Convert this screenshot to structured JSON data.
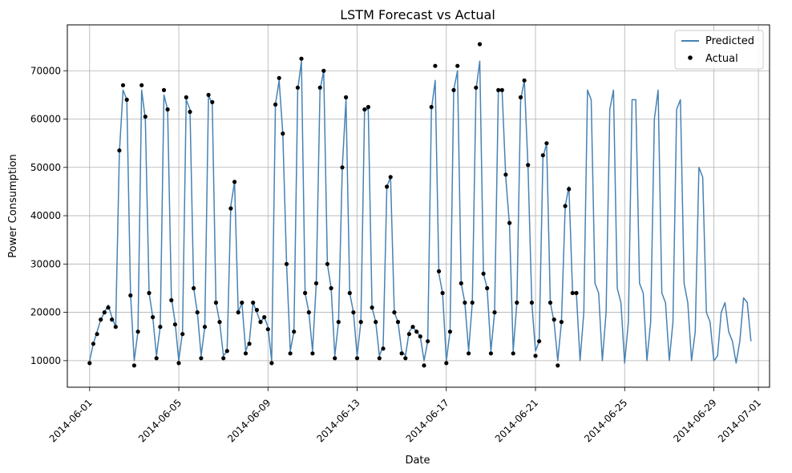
{
  "chart_data": {
    "type": "line",
    "title": "LSTM Forecast vs Actual",
    "xlabel": "Date",
    "ylabel": "Power Consumption",
    "xlim": [
      "2014-05-31T00:00",
      "2014-07-01T12:00"
    ],
    "ylim": [
      4500,
      79500
    ],
    "x_ticks": [
      "2014-06-01",
      "2014-06-05",
      "2014-06-09",
      "2014-06-13",
      "2014-06-17",
      "2014-06-21",
      "2014-06-25",
      "2014-06-29",
      "2014-07-01"
    ],
    "y_ticks": [
      10000,
      20000,
      30000,
      40000,
      50000,
      60000,
      70000
    ],
    "grid": true,
    "legend_position": "top-right",
    "colors": {
      "predicted": "#4682b4",
      "actual": "#000000"
    },
    "series": [
      {
        "name": "Predicted",
        "style": "line",
        "x": [
          "2014-06-01T00:00",
          "2014-06-01T04:00",
          "2014-06-01T08:00",
          "2014-06-01T12:00",
          "2014-06-01T16:00",
          "2014-06-01T20:00",
          "2014-06-02T00:00",
          "2014-06-02T04:00",
          "2014-06-02T08:00",
          "2014-06-02T12:00",
          "2014-06-02T16:00",
          "2014-06-02T20:00",
          "2014-06-03T00:00",
          "2014-06-03T04:00",
          "2014-06-03T08:00",
          "2014-06-03T12:00",
          "2014-06-03T16:00",
          "2014-06-03T20:00",
          "2014-06-04T00:00",
          "2014-06-04T04:00",
          "2014-06-04T08:00",
          "2014-06-04T12:00",
          "2014-06-04T16:00",
          "2014-06-04T20:00",
          "2014-06-05T00:00",
          "2014-06-05T04:00",
          "2014-06-05T08:00",
          "2014-06-05T12:00",
          "2014-06-05T16:00",
          "2014-06-05T20:00",
          "2014-06-06T00:00",
          "2014-06-06T04:00",
          "2014-06-06T08:00",
          "2014-06-06T12:00",
          "2014-06-06T16:00",
          "2014-06-06T20:00",
          "2014-06-07T00:00",
          "2014-06-07T04:00",
          "2014-06-07T08:00",
          "2014-06-07T12:00",
          "2014-06-07T16:00",
          "2014-06-07T20:00",
          "2014-06-08T00:00",
          "2014-06-08T04:00",
          "2014-06-08T08:00",
          "2014-06-08T12:00",
          "2014-06-08T16:00",
          "2014-06-08T20:00",
          "2014-06-09T00:00",
          "2014-06-09T04:00",
          "2014-06-09T08:00",
          "2014-06-09T12:00",
          "2014-06-09T16:00",
          "2014-06-09T20:00",
          "2014-06-10T00:00",
          "2014-06-10T04:00",
          "2014-06-10T08:00",
          "2014-06-10T12:00",
          "2014-06-10T16:00",
          "2014-06-10T20:00",
          "2014-06-11T00:00",
          "2014-06-11T04:00",
          "2014-06-11T08:00",
          "2014-06-11T12:00",
          "2014-06-11T16:00",
          "2014-06-11T20:00",
          "2014-06-12T00:00",
          "2014-06-12T04:00",
          "2014-06-12T08:00",
          "2014-06-12T12:00",
          "2014-06-12T16:00",
          "2014-06-12T20:00",
          "2014-06-13T00:00",
          "2014-06-13T04:00",
          "2014-06-13T08:00",
          "2014-06-13T12:00",
          "2014-06-13T16:00",
          "2014-06-13T20:00",
          "2014-06-14T00:00",
          "2014-06-14T04:00",
          "2014-06-14T08:00",
          "2014-06-14T12:00",
          "2014-06-14T16:00",
          "2014-06-14T20:00",
          "2014-06-15T00:00",
          "2014-06-15T04:00",
          "2014-06-15T08:00",
          "2014-06-15T12:00",
          "2014-06-15T16:00",
          "2014-06-15T20:00",
          "2014-06-16T00:00",
          "2014-06-16T04:00",
          "2014-06-16T08:00",
          "2014-06-16T12:00",
          "2014-06-16T16:00",
          "2014-06-16T20:00",
          "2014-06-17T00:00",
          "2014-06-17T04:00",
          "2014-06-17T08:00",
          "2014-06-17T12:00",
          "2014-06-17T16:00",
          "2014-06-17T20:00",
          "2014-06-18T00:00",
          "2014-06-18T04:00",
          "2014-06-18T08:00",
          "2014-06-18T12:00",
          "2014-06-18T16:00",
          "2014-06-18T20:00",
          "2014-06-19T00:00",
          "2014-06-19T04:00",
          "2014-06-19T08:00",
          "2014-06-19T12:00",
          "2014-06-19T16:00",
          "2014-06-19T20:00",
          "2014-06-20T00:00",
          "2014-06-20T04:00",
          "2014-06-20T08:00",
          "2014-06-20T12:00",
          "2014-06-20T16:00",
          "2014-06-20T20:00",
          "2014-06-21T00:00",
          "2014-06-21T04:00",
          "2014-06-21T08:00",
          "2014-06-21T12:00",
          "2014-06-21T16:00",
          "2014-06-21T20:00",
          "2014-06-22T00:00",
          "2014-06-22T04:00",
          "2014-06-22T08:00",
          "2014-06-22T12:00",
          "2014-06-22T16:00",
          "2014-06-22T20:00",
          "2014-06-23T00:00",
          "2014-06-23T04:00",
          "2014-06-23T08:00",
          "2014-06-23T12:00",
          "2014-06-23T16:00",
          "2014-06-23T20:00",
          "2014-06-24T00:00",
          "2014-06-24T04:00",
          "2014-06-24T08:00",
          "2014-06-24T12:00",
          "2014-06-24T16:00",
          "2014-06-24T20:00",
          "2014-06-25T00:00",
          "2014-06-25T04:00",
          "2014-06-25T08:00",
          "2014-06-25T12:00",
          "2014-06-25T16:00",
          "2014-06-25T20:00",
          "2014-06-26T00:00",
          "2014-06-26T04:00",
          "2014-06-26T08:00",
          "2014-06-26T12:00",
          "2014-06-26T16:00",
          "2014-06-26T20:00",
          "2014-06-27T00:00",
          "2014-06-27T04:00",
          "2014-06-27T08:00",
          "2014-06-27T12:00",
          "2014-06-27T16:00",
          "2014-06-27T20:00",
          "2014-06-28T00:00",
          "2014-06-28T04:00",
          "2014-06-28T08:00",
          "2014-06-28T12:00",
          "2014-06-28T16:00",
          "2014-06-28T20:00",
          "2014-06-29T00:00",
          "2014-06-29T04:00",
          "2014-06-29T08:00",
          "2014-06-29T12:00",
          "2014-06-29T16:00",
          "2014-06-29T20:00",
          "2014-06-30T00:00",
          "2014-06-30T04:00",
          "2014-06-30T08:00",
          "2014-06-30T12:00",
          "2014-06-30T16:00"
        ],
        "y": [
          10000,
          13500,
          16000,
          18500,
          20000,
          21500,
          19000,
          17000,
          53000,
          66000,
          64000,
          24000,
          10000,
          16000,
          66000,
          60000,
          24000,
          19000,
          11000,
          17000,
          65000,
          62000,
          23000,
          18000,
          10000,
          16000,
          64000,
          62000,
          25000,
          20000,
          11000,
          17000,
          65000,
          63000,
          22000,
          18000,
          11000,
          12000,
          42000,
          47000,
          20000,
          22000,
          12000,
          14000,
          22000,
          20000,
          18000,
          19000,
          17000,
          10000,
          63000,
          68000,
          57000,
          30000,
          12000,
          16000,
          66000,
          72000,
          24000,
          20000,
          12000,
          26000,
          66000,
          70000,
          30000,
          25000,
          11000,
          18000,
          50000,
          64000,
          24000,
          20000,
          11000,
          18000,
          62000,
          62000,
          21000,
          18000,
          11000,
          13000,
          46000,
          48000,
          20000,
          18000,
          12000,
          11000,
          16000,
          17000,
          16000,
          15000,
          10000,
          14000,
          62000,
          68000,
          28000,
          24000,
          10000,
          16000,
          66000,
          70000,
          26000,
          22000,
          12000,
          22000,
          66000,
          72000,
          28000,
          25000,
          12000,
          20000,
          66000,
          66000,
          48000,
          38000,
          12000,
          22000,
          64000,
          68000,
          50000,
          22000,
          12000,
          14000,
          52000,
          55000,
          22000,
          18000,
          10000,
          18000,
          42000,
          46000,
          24000,
          24000,
          10000,
          20000,
          66000,
          64000,
          26000,
          24000,
          10000,
          20000,
          62000,
          66000,
          25000,
          22000,
          9500,
          18000,
          64000,
          64000,
          26000,
          24000,
          10000,
          18000,
          60000,
          66000,
          24000,
          22000,
          10000,
          18000,
          62000,
          64000,
          26000,
          22000,
          10000,
          16000,
          50000,
          48000,
          20000,
          18000,
          10000,
          11000,
          20000,
          22000,
          16000,
          14000,
          9500,
          14000,
          23000,
          22000,
          14000
        ]
      },
      {
        "name": "Actual",
        "style": "markers",
        "x": [
          "2014-06-01T00:00",
          "2014-06-01T04:00",
          "2014-06-01T08:00",
          "2014-06-01T12:00",
          "2014-06-01T16:00",
          "2014-06-01T20:00",
          "2014-06-02T00:00",
          "2014-06-02T04:00",
          "2014-06-02T08:00",
          "2014-06-02T12:00",
          "2014-06-02T16:00",
          "2014-06-02T20:00",
          "2014-06-03T00:00",
          "2014-06-03T04:00",
          "2014-06-03T08:00",
          "2014-06-03T12:00",
          "2014-06-03T16:00",
          "2014-06-03T20:00",
          "2014-06-04T00:00",
          "2014-06-04T04:00",
          "2014-06-04T08:00",
          "2014-06-04T12:00",
          "2014-06-04T16:00",
          "2014-06-04T20:00",
          "2014-06-05T00:00",
          "2014-06-05T04:00",
          "2014-06-05T08:00",
          "2014-06-05T12:00",
          "2014-06-05T16:00",
          "2014-06-05T20:00",
          "2014-06-06T00:00",
          "2014-06-06T04:00",
          "2014-06-06T08:00",
          "2014-06-06T12:00",
          "2014-06-06T16:00",
          "2014-06-06T20:00",
          "2014-06-07T00:00",
          "2014-06-07T04:00",
          "2014-06-07T08:00",
          "2014-06-07T12:00",
          "2014-06-07T16:00",
          "2014-06-07T20:00",
          "2014-06-08T00:00",
          "2014-06-08T04:00",
          "2014-06-08T08:00",
          "2014-06-08T12:00",
          "2014-06-08T16:00",
          "2014-06-08T20:00",
          "2014-06-09T00:00",
          "2014-06-09T04:00",
          "2014-06-09T08:00",
          "2014-06-09T12:00",
          "2014-06-09T16:00",
          "2014-06-09T20:00",
          "2014-06-10T00:00",
          "2014-06-10T04:00",
          "2014-06-10T08:00",
          "2014-06-10T12:00",
          "2014-06-10T16:00",
          "2014-06-10T20:00",
          "2014-06-11T00:00",
          "2014-06-11T04:00",
          "2014-06-11T08:00",
          "2014-06-11T12:00",
          "2014-06-11T16:00",
          "2014-06-11T20:00",
          "2014-06-12T00:00",
          "2014-06-12T04:00",
          "2014-06-12T08:00",
          "2014-06-12T12:00",
          "2014-06-12T16:00",
          "2014-06-12T20:00",
          "2014-06-13T00:00",
          "2014-06-13T04:00",
          "2014-06-13T08:00",
          "2014-06-13T12:00",
          "2014-06-13T16:00",
          "2014-06-13T20:00",
          "2014-06-14T00:00",
          "2014-06-14T04:00",
          "2014-06-14T08:00",
          "2014-06-14T12:00",
          "2014-06-14T16:00",
          "2014-06-14T20:00",
          "2014-06-15T00:00",
          "2014-06-15T04:00",
          "2014-06-15T08:00",
          "2014-06-15T12:00",
          "2014-06-15T16:00",
          "2014-06-15T20:00",
          "2014-06-16T00:00",
          "2014-06-16T04:00",
          "2014-06-16T08:00",
          "2014-06-16T12:00",
          "2014-06-16T16:00",
          "2014-06-16T20:00",
          "2014-06-17T00:00",
          "2014-06-17T04:00",
          "2014-06-17T08:00",
          "2014-06-17T12:00",
          "2014-06-17T16:00",
          "2014-06-17T20:00",
          "2014-06-18T00:00",
          "2014-06-18T04:00",
          "2014-06-18T08:00",
          "2014-06-18T12:00",
          "2014-06-18T16:00",
          "2014-06-18T20:00",
          "2014-06-19T00:00",
          "2014-06-19T04:00",
          "2014-06-19T08:00",
          "2014-06-19T12:00",
          "2014-06-19T16:00",
          "2014-06-19T20:00",
          "2014-06-20T00:00",
          "2014-06-20T04:00",
          "2014-06-20T08:00",
          "2014-06-20T12:00",
          "2014-06-20T16:00",
          "2014-06-20T20:00",
          "2014-06-21T00:00",
          "2014-06-21T04:00",
          "2014-06-21T08:00",
          "2014-06-21T12:00",
          "2014-06-21T16:00",
          "2014-06-21T20:00",
          "2014-06-22T00:00",
          "2014-06-22T04:00",
          "2014-06-22T08:00",
          "2014-06-22T12:00",
          "2014-06-22T16:00",
          "2014-06-22T20:00"
        ],
        "y": [
          9500,
          13500,
          15500,
          18500,
          20000,
          21000,
          18500,
          17000,
          53500,
          67000,
          64000,
          23500,
          9000,
          16000,
          67000,
          60500,
          24000,
          19000,
          10500,
          17000,
          66000,
          62000,
          22500,
          17500,
          9500,
          15500,
          64500,
          61500,
          25000,
          20000,
          10500,
          17000,
          65000,
          63500,
          22000,
          18000,
          10500,
          12000,
          41500,
          47000,
          20000,
          22000,
          11500,
          13500,
          22000,
          20500,
          18000,
          19000,
          16500,
          9500,
          63000,
          68500,
          57000,
          30000,
          11500,
          16000,
          66500,
          72500,
          24000,
          20000,
          11500,
          26000,
          66500,
          70000,
          30000,
          25000,
          10500,
          18000,
          50000,
          64500,
          24000,
          20000,
          10500,
          18000,
          62000,
          62500,
          21000,
          18000,
          10500,
          12500,
          46000,
          48000,
          20000,
          18000,
          11500,
          10500,
          15500,
          17000,
          16000,
          15000,
          9000,
          14000,
          62500,
          71000,
          28500,
          24000,
          9500,
          16000,
          66000,
          71000,
          26000,
          22000,
          11500,
          22000,
          66500,
          75500,
          28000,
          25000,
          11500,
          20000,
          66000,
          66000,
          48500,
          38500,
          11500,
          22000,
          64500,
          68000,
          50500,
          22000,
          11000,
          14000,
          52500,
          55000,
          22000,
          18500,
          9000,
          18000,
          42000,
          45500,
          24000,
          24000
        ]
      }
    ]
  }
}
